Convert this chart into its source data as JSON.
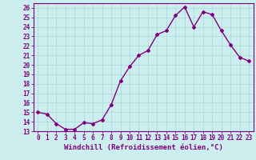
{
  "x": [
    0,
    1,
    2,
    3,
    4,
    5,
    6,
    7,
    8,
    9,
    10,
    11,
    12,
    13,
    14,
    15,
    16,
    17,
    18,
    19,
    20,
    21,
    22,
    23
  ],
  "y": [
    15.0,
    14.8,
    13.8,
    13.2,
    13.2,
    13.9,
    13.8,
    14.2,
    15.8,
    18.3,
    19.8,
    21.0,
    21.5,
    23.2,
    23.6,
    25.2,
    26.1,
    24.0,
    25.6,
    25.3,
    23.6,
    22.1,
    20.8,
    20.4
  ],
  "line_color": "#800080",
  "marker": "D",
  "marker_size": 2,
  "bg_color": "#cceeee",
  "grid_color": "#aadddd",
  "xlabel": "Windchill (Refroidissement éolien,°C)",
  "xlim": [
    -0.5,
    23.5
  ],
  "ylim": [
    13,
    26.5
  ],
  "yticks": [
    13,
    14,
    15,
    16,
    17,
    18,
    19,
    20,
    21,
    22,
    23,
    24,
    25,
    26
  ],
  "xtick_labels": [
    "0",
    "1",
    "2",
    "3",
    "4",
    "5",
    "6",
    "7",
    "8",
    "9",
    "10",
    "11",
    "12",
    "13",
    "14",
    "15",
    "16",
    "17",
    "18",
    "19",
    "20",
    "21",
    "22",
    "23"
  ],
  "xlabel_fontsize": 6.5,
  "tick_fontsize": 5.5,
  "line_width": 1.0
}
